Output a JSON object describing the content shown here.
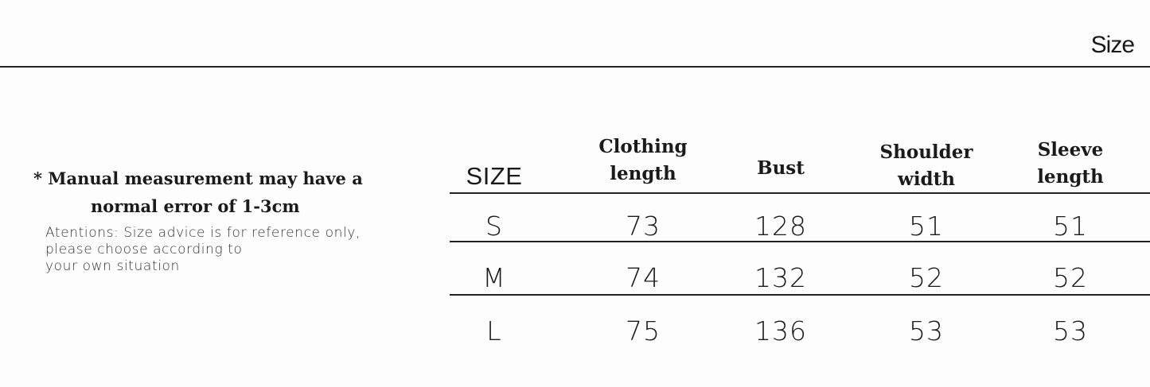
{
  "title": "Size",
  "note": {
    "line1": "* Manual measurement may have a",
    "line2": "normal error of 1-3cm",
    "attention": "Atentions: Size advice is for reference only,\nplease choose according to\nyour own situation"
  },
  "table": {
    "headers": [
      "SIZE",
      "Clothing\nlength",
      "Bust",
      "Shoulder\nwidth",
      "Sleeve\nlength"
    ],
    "rows": [
      [
        "S",
        "73",
        "128",
        "51",
        "51"
      ],
      [
        "M",
        "74",
        "132",
        "52",
        "52"
      ],
      [
        "L",
        "75",
        "136",
        "53",
        "53"
      ]
    ]
  }
}
